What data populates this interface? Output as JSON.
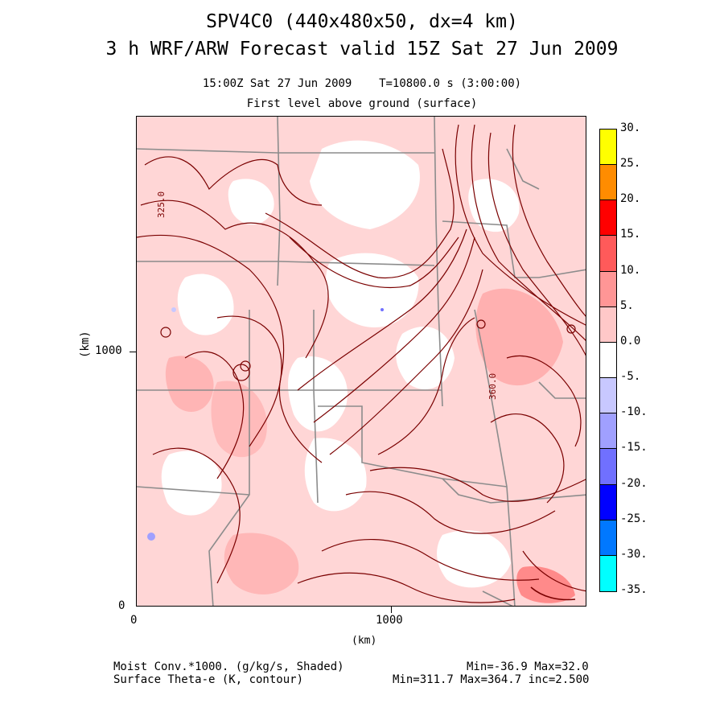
{
  "titles": {
    "line1": "SPV4C0 (440x480x50, dx=4 km)",
    "line2": "3 h WRF/ARW Forecast valid 15Z Sat 27 Jun 2009",
    "sub_time": "15:00Z Sat 27 Jun 2009    T=10800.0 s (3:00:00)",
    "sub_level": "First level above ground (surface)"
  },
  "axes": {
    "xlabel": "(km)",
    "ylabel": "(km)",
    "x_ticks": [
      "0",
      "1000"
    ],
    "y_ticks": [
      "0",
      "1000"
    ]
  },
  "contour_labels": [
    "325.0",
    "360.0"
  ],
  "colorbar": {
    "labels": [
      "30.",
      "25.",
      "20.",
      "15.",
      "10.",
      "5.",
      "0.0",
      "-5.",
      "-10.",
      "-15.",
      "-20.",
      "-25.",
      "-30.",
      "-35."
    ],
    "colors": [
      "#ffff00",
      "#ff8c00",
      "#ff0000",
      "#ff5a5a",
      "#ff9696",
      "#ffc8c8",
      "#ffffff",
      "#c8c8ff",
      "#a0a0ff",
      "#7070ff",
      "#0000ff",
      "#0078ff",
      "#00ffff"
    ]
  },
  "footer": {
    "field1": "Moist Conv.*1000. (g/kg/s, Shaded)",
    "field2": "Surface Theta-e (K, contour)",
    "range1": "Min=-36.9 Max=32.0",
    "range2": "Min=311.7 Max=364.7 inc=2.500"
  },
  "colors": {
    "contour": "#7a0000",
    "borders": "#8c8c8c",
    "shade_light": "#ffc8c8",
    "shade_mid": "#ff9f9f"
  }
}
